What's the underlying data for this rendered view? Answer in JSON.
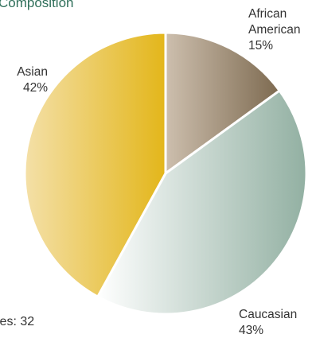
{
  "chart_data": {
    "type": "pie",
    "title": "Composition",
    "slices": [
      {
        "label_lines": [
          "African",
          "American"
        ],
        "value": 15,
        "value_text": "15%",
        "color_start": "#cdbfae",
        "color_end": "#7d6a50"
      },
      {
        "label_lines": [
          "Caucasian"
        ],
        "value": 43,
        "value_text": "43%",
        "color_start": "#ffffff",
        "color_end": "#92b0a2"
      },
      {
        "label_lines": [
          "Asian"
        ],
        "value": 42,
        "value_text": "42%",
        "color_start": "#f4e0a8",
        "color_end": "#e3b61a"
      }
    ],
    "start_angle_deg": 0,
    "direction": "clockwise",
    "footnote": "les: 32"
  }
}
